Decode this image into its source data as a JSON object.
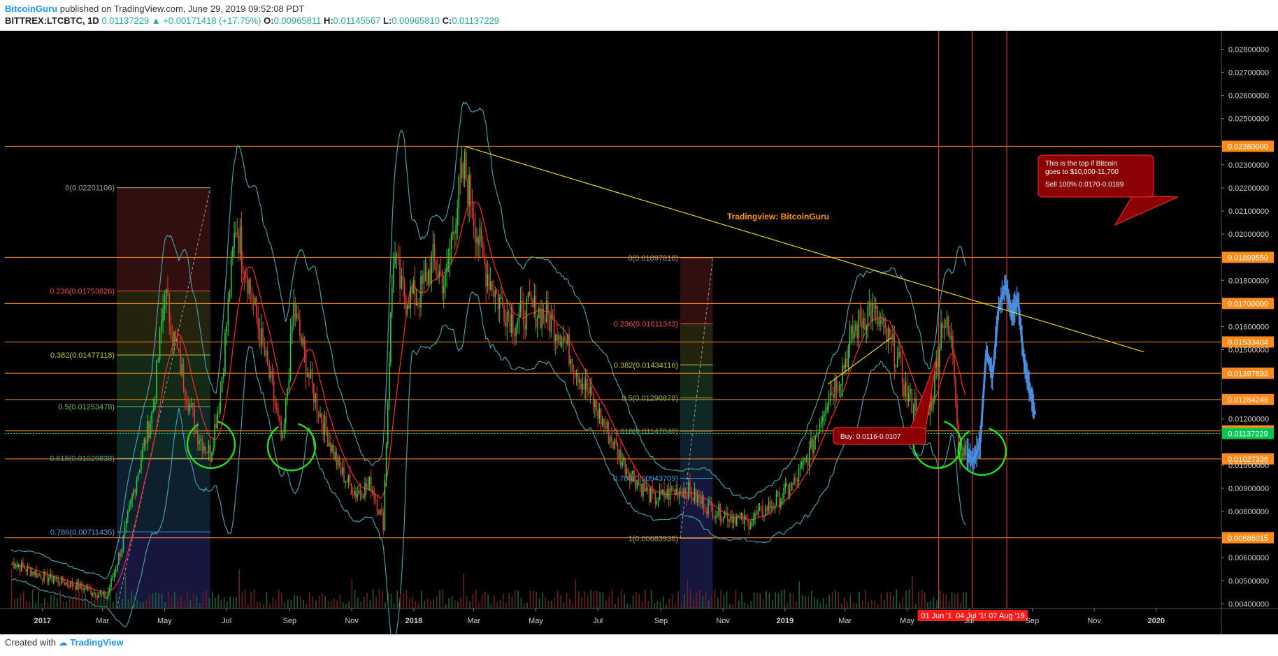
{
  "header": {
    "author": "BitcoinGuru",
    "published": "published on TradingView.com, June 29, 2019 09:52:08 PDT",
    "symbol": "BITTREX:LTCBTC, 1D",
    "last": "0.01137229",
    "change": "+0.00171418 (+17.75%)",
    "open_label": "O:",
    "open": "0.00965811",
    "high_label": "H:",
    "high": "0.01145567",
    "low_label": "L:",
    "low": "0.00965810",
    "close_label": "C:",
    "close": "0.01137229"
  },
  "footer": {
    "created_with": "Created with",
    "brand": "TradingView"
  },
  "chart_data": {
    "type": "line",
    "title": "",
    "colors": {
      "background": "#000000",
      "up": "#2ecc40",
      "down": "#e53935",
      "bollinger": "#4a9ba8",
      "sma": "#ff2a2a",
      "projection": "#4a90e2",
      "horizontal": "#ff8c1a",
      "trendline": "#e6d32a",
      "event_line": "#ff3030"
    },
    "ylim": [
      0.0038,
      0.0288
    ],
    "x_ticks": [
      "2017",
      "Mar",
      "May",
      "Jul",
      "Sep",
      "Nov",
      "2018",
      "Mar",
      "May",
      "Jul",
      "Sep",
      "Nov",
      "2019",
      "Mar",
      "May",
      "Jul",
      "Sep",
      "Nov",
      "2020"
    ],
    "x_tick_values": [
      "2017-01",
      "2017-03",
      "2017-05",
      "2017-07",
      "2017-09",
      "2017-11",
      "2018-01",
      "2018-03",
      "2018-05",
      "2018-07",
      "2018-09",
      "2018-11",
      "2019-01",
      "2019-03",
      "2019-05",
      "2019-07",
      "2019-09",
      "2019-11",
      "2020-01"
    ],
    "y_ticks": [
      "0.02800000",
      "0.02700000",
      "0.02600000",
      "0.02500000",
      "0.02300000",
      "0.02200000",
      "0.02100000",
      "0.02000000",
      "0.01800000",
      "0.01600000",
      "0.01500000",
      "0.01200000",
      "0.01000000",
      "0.00900000",
      "0.00800000",
      "0.00600000",
      "0.00500000",
      "0.00400000"
    ],
    "y_tick_values": [
      0.028,
      0.027,
      0.026,
      0.025,
      0.023,
      0.022,
      0.021,
      0.02,
      0.018,
      0.016,
      0.015,
      0.012,
      0.01,
      0.009,
      0.008,
      0.006,
      0.005,
      0.004
    ],
    "price_series": {
      "name": "",
      "x": [
        "2016-12-01",
        "2017-01-01",
        "2017-02-10",
        "2017-03-05",
        "2017-03-20",
        "2017-04-05",
        "2017-04-20",
        "2017-05-01",
        "2017-05-15",
        "2017-06-01",
        "2017-06-15",
        "2017-06-25",
        "2017-07-10",
        "2017-07-20",
        "2017-08-01",
        "2017-08-15",
        "2017-08-25",
        "2017-09-05",
        "2017-09-20",
        "2017-10-01",
        "2017-10-20",
        "2017-11-05",
        "2017-11-20",
        "2017-12-02",
        "2017-12-08",
        "2017-12-12",
        "2017-12-20",
        "2018-01-05",
        "2018-01-20",
        "2018-02-01",
        "2018-02-10",
        "2018-02-20",
        "2018-03-01",
        "2018-03-10",
        "2018-03-25",
        "2018-04-10",
        "2018-04-25",
        "2018-05-10",
        "2018-05-25",
        "2018-06-10",
        "2018-06-25",
        "2018-07-10",
        "2018-07-25",
        "2018-08-10",
        "2018-08-25",
        "2018-09-10",
        "2018-09-25",
        "2018-10-10",
        "2018-10-25",
        "2018-11-10",
        "2018-11-25",
        "2018-12-10",
        "2018-12-25",
        "2019-01-10",
        "2019-01-25",
        "2019-02-10",
        "2019-02-25",
        "2019-03-10",
        "2019-03-25",
        "2019-04-05",
        "2019-04-20",
        "2019-05-01",
        "2019-05-15",
        "2019-05-25",
        "2019-06-05",
        "2019-06-15",
        "2019-06-22",
        "2019-06-29"
      ],
      "y": [
        0.0058,
        0.0052,
        0.0047,
        0.0043,
        0.0065,
        0.0098,
        0.0125,
        0.0175,
        0.0145,
        0.0115,
        0.0105,
        0.0132,
        0.0205,
        0.0185,
        0.016,
        0.0132,
        0.0108,
        0.0168,
        0.0138,
        0.0122,
        0.0098,
        0.0088,
        0.0092,
        0.0075,
        0.0148,
        0.0192,
        0.0175,
        0.0172,
        0.0188,
        0.0178,
        0.0208,
        0.0228,
        0.0208,
        0.0188,
        0.0172,
        0.0162,
        0.0168,
        0.0165,
        0.0158,
        0.0142,
        0.0128,
        0.0115,
        0.0102,
        0.0092,
        0.0085,
        0.0088,
        0.009,
        0.0084,
        0.008,
        0.0078,
        0.0075,
        0.008,
        0.0085,
        0.0092,
        0.0105,
        0.0128,
        0.014,
        0.0158,
        0.0168,
        0.016,
        0.0148,
        0.013,
        0.0122,
        0.0128,
        0.0165,
        0.015,
        0.0102,
        0.0114
      ]
    },
    "projection_series": {
      "name": "",
      "x": [
        "2019-06-29",
        "2019-07-05",
        "2019-07-12",
        "2019-07-18",
        "2019-07-24",
        "2019-07-30",
        "2019-08-06",
        "2019-08-12",
        "2019-08-18",
        "2019-08-24",
        "2019-08-30",
        "2019-09-04"
      ],
      "y": [
        0.0105,
        0.0102,
        0.011,
        0.015,
        0.0138,
        0.0168,
        0.0178,
        0.0165,
        0.0172,
        0.0145,
        0.0132,
        0.0122
      ]
    },
    "horizontal_lines": [
      {
        "value": 0.0238,
        "label": "0.02380000"
      },
      {
        "value": 0.0189955,
        "label": "0.01899550"
      },
      {
        "value": 0.017,
        "label": "0.01700000"
      },
      {
        "value": 0.01533404,
        "label": "0.01533404"
      },
      {
        "value": 0.01397893,
        "label": "0.01397893"
      },
      {
        "value": 0.01284246,
        "label": "0.01284246"
      },
      {
        "value": 0.01148404,
        "label": "0.01148404"
      },
      {
        "value": 0.01027336,
        "label": "0.01027336"
      },
      {
        "value": 0.00686015,
        "label": "0.00686015"
      }
    ],
    "last_price": {
      "value": 0.01137229,
      "label": "0.01137229",
      "color": "#00c853"
    },
    "fib_sets": [
      {
        "x_start": "2017-03-15",
        "x_end": "2017-06-15",
        "levels": [
          {
            "value": 0.02201106,
            "label": "0(0.02201106)",
            "color": "#9e9e9e"
          },
          {
            "value": 0.01753826,
            "label": "0.236(0.01753826)",
            "color": "#ef5350"
          },
          {
            "value": 0.01477118,
            "label": "0.382(0.01477118)",
            "color": "#c0ca33"
          },
          {
            "value": 0.01253478,
            "label": "0.5(0.01253478)",
            "color": "#66bb6a"
          },
          {
            "value": 0.01029838,
            "label": "0.618(0.01029838)",
            "color": "#26a69a"
          },
          {
            "value": 0.00711435,
            "label": "0.786(0.00711435)",
            "color": "#42a5f5"
          }
        ]
      },
      {
        "x_start": "2018-09-20",
        "x_end": "2018-10-22",
        "levels": [
          {
            "value": 0.01897818,
            "label": "0(0.01897818)",
            "color": "#9e9e9e"
          },
          {
            "value": 0.01611343,
            "label": "0.236(0.01611343)",
            "color": "#ef5350"
          },
          {
            "value": 0.01434116,
            "label": "0.382(0.01434116)",
            "color": "#c0ca33"
          },
          {
            "value": 0.01290878,
            "label": "0.5(0.01290878)",
            "color": "#66bb6a"
          },
          {
            "value": 0.0114764,
            "label": "0.618(0.01147640)",
            "color": "#26a69a"
          },
          {
            "value": 0.00943709,
            "label": "0.786(0.00943709)",
            "color": "#42a5f5"
          },
          {
            "value": 0.00683938,
            "label": "1(0.00683938)",
            "color": "#9e9e9e"
          }
        ]
      }
    ],
    "trendline": {
      "x": [
        "2018-02-20",
        "2019-12-20"
      ],
      "y": [
        0.0238,
        0.0149
      ]
    },
    "event_lines": [
      {
        "x": "2019-06-01",
        "label": "01 Jun '19"
      },
      {
        "x": "2019-07-04",
        "label": "04 Jul '19"
      },
      {
        "x": "2019-08-07",
        "label": "07 Aug '19"
      }
    ],
    "annotations": {
      "watermark": "Tradingview: BitcoinGuru",
      "top_callout_1": "This is the top if Bitcoin",
      "top_callout_2": "goes to $10,000-11,700",
      "top_callout_3": "Sell 100% 0.0170-0.0189",
      "buy_callout": "Buy: 0.0116-0.0107"
    },
    "circle_marks": [
      {
        "x": "2017-06-10",
        "y": 0.0108
      },
      {
        "x": "2017-08-28",
        "y": 0.0107
      },
      {
        "x": "2019-05-25",
        "y": 0.0108
      },
      {
        "x": "2019-07-08",
        "y": 0.0105
      }
    ],
    "grid": false,
    "legend": "none"
  }
}
